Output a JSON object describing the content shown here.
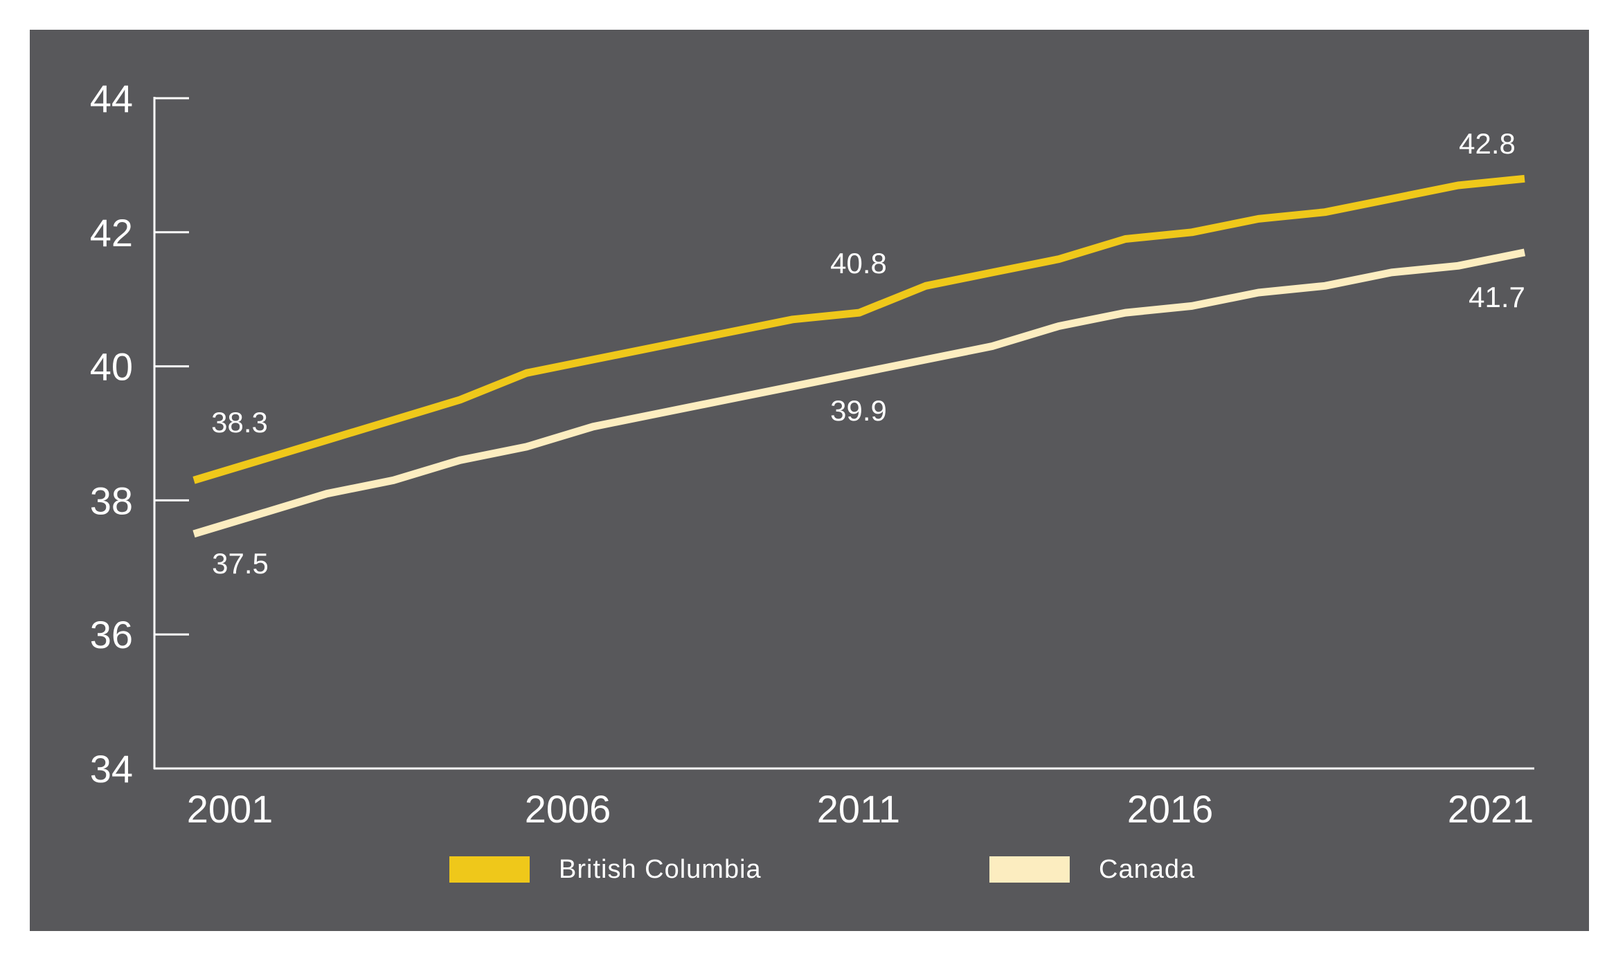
{
  "chart_data": {
    "type": "line",
    "title": "",
    "xlabel": "",
    "ylabel": "",
    "x": [
      2001,
      2002,
      2003,
      2004,
      2005,
      2006,
      2007,
      2008,
      2009,
      2010,
      2011,
      2012,
      2013,
      2014,
      2015,
      2016,
      2017,
      2018,
      2019,
      2020,
      2021
    ],
    "x_tick_labels": [
      "2001",
      "2006",
      "2011",
      "2016",
      "2021"
    ],
    "y_tick_labels": [
      "44",
      "42",
      "40",
      "38",
      "36",
      "34"
    ],
    "ylim": [
      34,
      44
    ],
    "grid": false,
    "legend_position": "bottom",
    "series": [
      {
        "name": "British Columbia",
        "color": "#efc81a",
        "values": [
          38.3,
          38.6,
          38.9,
          39.2,
          39.5,
          39.9,
          40.1,
          40.3,
          40.5,
          40.7,
          40.8,
          41.2,
          41.4,
          41.6,
          41.9,
          42.0,
          42.2,
          42.3,
          42.5,
          42.7,
          42.8
        ]
      },
      {
        "name": "Canada",
        "color": "#fcedc0",
        "values": [
          37.5,
          37.8,
          38.1,
          38.3,
          38.6,
          38.8,
          39.1,
          39.3,
          39.5,
          39.7,
          39.9,
          40.1,
          40.3,
          40.6,
          40.8,
          40.9,
          41.1,
          41.2,
          41.4,
          41.5,
          41.7
        ]
      }
    ],
    "annotations": [
      {
        "text": "38.3",
        "series": "British Columbia",
        "x": 2001
      },
      {
        "text": "37.5",
        "series": "Canada",
        "x": 2001
      },
      {
        "text": "40.8",
        "series": "British Columbia",
        "x": 2011
      },
      {
        "text": "39.9",
        "series": "Canada",
        "x": 2011
      },
      {
        "text": "42.8",
        "series": "British Columbia",
        "x": 2021
      },
      {
        "text": "41.7",
        "series": "Canada",
        "x": 2021
      }
    ]
  },
  "legend": {
    "items": [
      {
        "label": "British Columbia",
        "color": "#efc81a"
      },
      {
        "label": "Canada",
        "color": "#fcedc0"
      }
    ]
  },
  "colors": {
    "background": "#58585b",
    "axis": "#ffffff",
    "text": "#ffffff"
  }
}
